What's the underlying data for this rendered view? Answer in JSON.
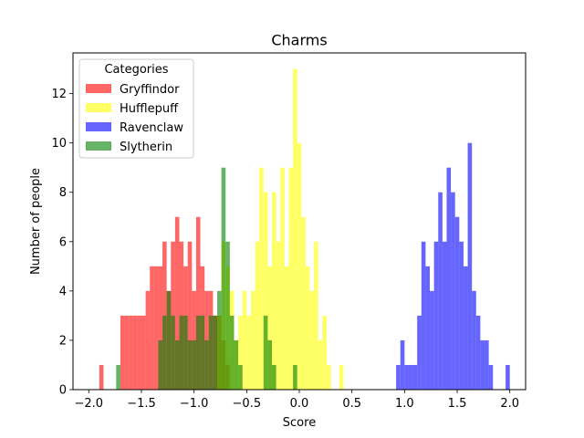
{
  "chart_data": {
    "type": "histogram",
    "title": "Charms",
    "xlabel": "Score",
    "ylabel": "Number of people",
    "xlim": [
      -2.15,
      2.15
    ],
    "ylim": [
      0,
      13.65
    ],
    "xticks": [
      -2.0,
      -1.5,
      -1.0,
      -0.5,
      0.0,
      0.5,
      1.0,
      1.5,
      2.0
    ],
    "xtick_labels": [
      "−2.0",
      "−1.5",
      "−1.0",
      "−0.5",
      "0.0",
      "0.5",
      "1.0",
      "1.5",
      "2.0"
    ],
    "yticks": [
      0,
      2,
      4,
      6,
      8,
      10,
      12
    ],
    "ytick_labels": [
      "0",
      "2",
      "4",
      "6",
      "8",
      "10",
      "12"
    ],
    "bin_width": 0.04,
    "legend": {
      "title": "Categories",
      "position": "upper-left"
    },
    "series": [
      {
        "name": "Gryffindor",
        "color": "#ff0000",
        "opacity": 0.6,
        "bins": [
          [
            -1.9,
            1
          ],
          [
            -1.7,
            3
          ],
          [
            -1.66,
            3
          ],
          [
            -1.62,
            3
          ],
          [
            -1.58,
            3
          ],
          [
            -1.54,
            3
          ],
          [
            -1.5,
            3
          ],
          [
            -1.46,
            4
          ],
          [
            -1.42,
            5
          ],
          [
            -1.38,
            5
          ],
          [
            -1.34,
            5
          ],
          [
            -1.3,
            6
          ],
          [
            -1.26,
            4
          ],
          [
            -1.22,
            6
          ],
          [
            -1.18,
            7
          ],
          [
            -1.14,
            6
          ],
          [
            -1.1,
            5
          ],
          [
            -1.06,
            6
          ],
          [
            -1.02,
            4
          ],
          [
            -0.98,
            7
          ],
          [
            -0.94,
            5
          ],
          [
            -0.9,
            4
          ],
          [
            -0.86,
            4
          ],
          [
            -0.82,
            3
          ],
          [
            -0.78,
            3
          ],
          [
            -0.74,
            2
          ],
          [
            -0.7,
            1
          ]
        ]
      },
      {
        "name": "Hufflepuff",
        "color": "#ffff00",
        "opacity": 0.6,
        "bins": [
          [
            -0.78,
            3
          ],
          [
            -0.74,
            6
          ],
          [
            -0.7,
            5
          ],
          [
            -0.66,
            4
          ],
          [
            -0.62,
            2
          ],
          [
            -0.58,
            3
          ],
          [
            -0.54,
            4
          ],
          [
            -0.5,
            3
          ],
          [
            -0.46,
            4
          ],
          [
            -0.42,
            6
          ],
          [
            -0.38,
            9
          ],
          [
            -0.34,
            8
          ],
          [
            -0.3,
            5
          ],
          [
            -0.26,
            8
          ],
          [
            -0.22,
            6
          ],
          [
            -0.18,
            9
          ],
          [
            -0.14,
            5
          ],
          [
            -0.1,
            9
          ],
          [
            -0.06,
            13
          ],
          [
            -0.02,
            10
          ],
          [
            0.02,
            7
          ],
          [
            0.06,
            5
          ],
          [
            0.1,
            4
          ],
          [
            0.14,
            6
          ],
          [
            0.18,
            2
          ],
          [
            0.22,
            3
          ],
          [
            0.26,
            1
          ],
          [
            0.38,
            1
          ]
        ]
      },
      {
        "name": "Ravenclaw",
        "color": "#0000ff",
        "opacity": 0.6,
        "bins": [
          [
            0.92,
            1
          ],
          [
            0.96,
            2
          ],
          [
            1.0,
            1
          ],
          [
            1.04,
            1
          ],
          [
            1.08,
            1
          ],
          [
            1.12,
            3
          ],
          [
            1.16,
            6
          ],
          [
            1.2,
            5
          ],
          [
            1.24,
            4
          ],
          [
            1.28,
            6
          ],
          [
            1.32,
            8
          ],
          [
            1.36,
            6
          ],
          [
            1.4,
            9
          ],
          [
            1.44,
            8
          ],
          [
            1.48,
            7
          ],
          [
            1.52,
            6
          ],
          [
            1.56,
            5
          ],
          [
            1.6,
            10
          ],
          [
            1.64,
            4
          ],
          [
            1.68,
            3
          ],
          [
            1.72,
            2
          ],
          [
            1.76,
            2
          ],
          [
            1.8,
            1
          ],
          [
            1.96,
            1
          ]
        ]
      },
      {
        "name": "Slytherin",
        "color": "#008000",
        "opacity": 0.6,
        "bins": [
          [
            -1.74,
            1
          ],
          [
            -1.34,
            2
          ],
          [
            -1.3,
            3
          ],
          [
            -1.26,
            4
          ],
          [
            -1.22,
            3
          ],
          [
            -1.18,
            2
          ],
          [
            -1.14,
            3
          ],
          [
            -1.1,
            3
          ],
          [
            -1.06,
            2
          ],
          [
            -1.02,
            2
          ],
          [
            -0.98,
            3
          ],
          [
            -0.94,
            3
          ],
          [
            -0.9,
            2
          ],
          [
            -0.86,
            3
          ],
          [
            -0.82,
            3
          ],
          [
            -0.78,
            4
          ],
          [
            -0.74,
            9
          ],
          [
            -0.7,
            6
          ],
          [
            -0.66,
            3
          ],
          [
            -0.62,
            2
          ],
          [
            -0.58,
            1
          ],
          [
            -0.34,
            3
          ],
          [
            -0.3,
            2
          ],
          [
            -0.26,
            1
          ],
          [
            -0.06,
            1
          ]
        ]
      }
    ]
  }
}
